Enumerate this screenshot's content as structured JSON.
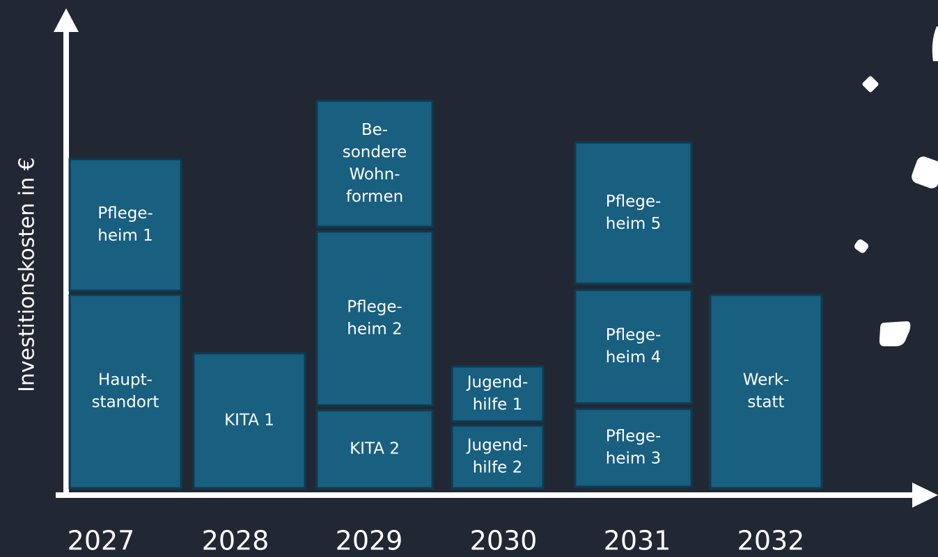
{
  "y_axis": {
    "label": "Investitionskosten in €"
  },
  "columns": [
    {
      "year": "2027",
      "blocks": [
        {
          "lines": [
            "Haupt-",
            "standort"
          ]
        },
        {
          "lines": [
            "Pflege-",
            "heim 1"
          ]
        }
      ]
    },
    {
      "year": "2028",
      "blocks": [
        {
          "lines": [
            "KITA 1"
          ]
        }
      ]
    },
    {
      "year": "2029",
      "blocks": [
        {
          "lines": [
            "KITA 2"
          ]
        },
        {
          "lines": [
            "Pflege-",
            "heim 2"
          ]
        },
        {
          "lines": [
            "Be-",
            "sondere",
            "Wohn-",
            "formen"
          ]
        }
      ]
    },
    {
      "year": "2030",
      "blocks": [
        {
          "lines": [
            "Jugend-",
            "hilfe 2"
          ]
        },
        {
          "lines": [
            "Jugend-",
            "hilfe 1"
          ]
        }
      ]
    },
    {
      "year": "2031",
      "blocks": [
        {
          "lines": [
            "Pflege-",
            "heim 3"
          ]
        },
        {
          "lines": [
            "Pflege-",
            "heim 4"
          ]
        },
        {
          "lines": [
            "Pflege-",
            "heim 5"
          ]
        }
      ]
    },
    {
      "year": "2032",
      "blocks": [
        {
          "lines": [
            "Werk-",
            "statt"
          ]
        }
      ]
    }
  ]
}
